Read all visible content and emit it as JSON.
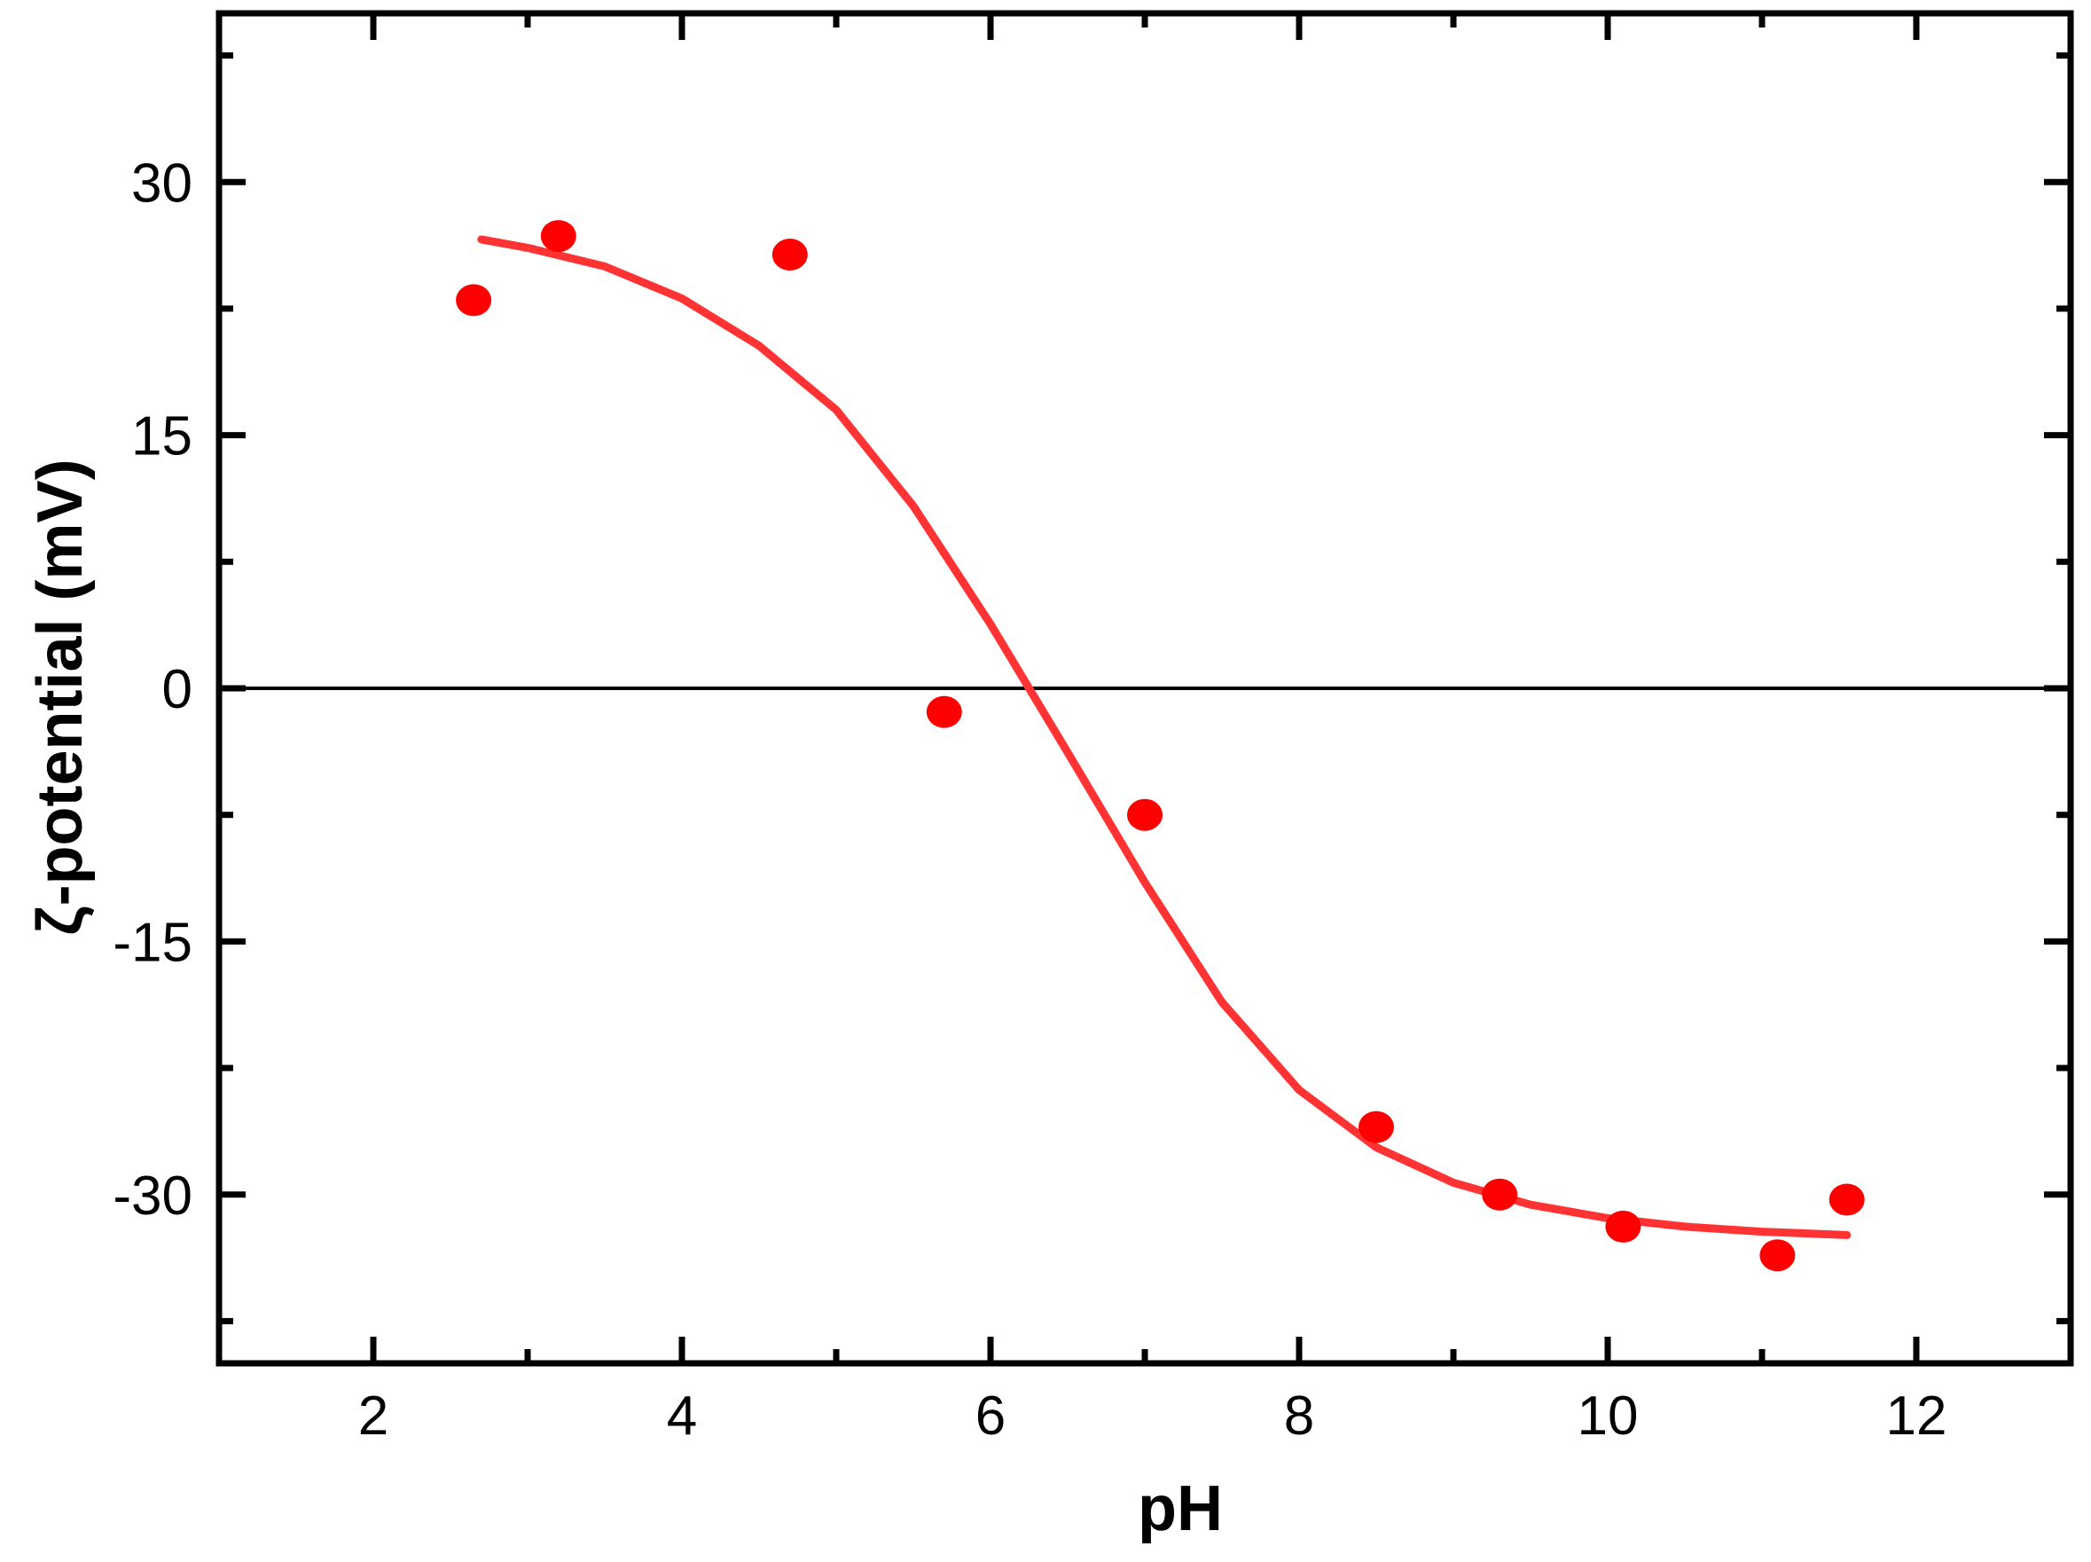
{
  "chart_data": {
    "type": "scatter",
    "xlabel": "pH",
    "ylabel": "ζ-potential (mV)",
    "xlim": [
      1,
      13
    ],
    "ylim": [
      -40,
      40
    ],
    "x_ticks": [
      "2",
      "4",
      "6",
      "8",
      "10",
      "12"
    ],
    "y_ticks": [
      "30",
      "15",
      "0",
      "-15",
      "-30"
    ],
    "grid": false,
    "reference_line_y": 0,
    "series": [
      {
        "points": [
          {
            "x": 2.65,
            "y": 23.0
          },
          {
            "x": 3.2,
            "y": 26.8
          },
          {
            "x": 4.7,
            "y": 25.7
          },
          {
            "x": 5.7,
            "y": -1.4
          },
          {
            "x": 7.0,
            "y": -7.5
          },
          {
            "x": 8.5,
            "y": -26.0
          },
          {
            "x": 9.3,
            "y": -30.0
          },
          {
            "x": 10.1,
            "y": -31.9
          },
          {
            "x": 11.1,
            "y": -33.6
          },
          {
            "x": 11.55,
            "y": -30.3
          }
        ],
        "color": "#ff0000"
      }
    ],
    "fit_curve": {
      "color": "#ff3333",
      "x": [
        2.7,
        3.0,
        3.5,
        4.0,
        4.5,
        5.0,
        5.5,
        6.0,
        6.25,
        6.5,
        7.0,
        7.5,
        8.0,
        8.5,
        9.0,
        9.5,
        10.0,
        10.5,
        11.0,
        11.55
      ],
      "y": [
        26.6,
        26.1,
        25.0,
        23.1,
        20.3,
        16.5,
        10.8,
        3.8,
        0.0,
        -3.8,
        -11.5,
        -18.6,
        -23.8,
        -27.2,
        -29.3,
        -30.6,
        -31.4,
        -31.9,
        -32.2,
        -32.4
      ]
    }
  }
}
